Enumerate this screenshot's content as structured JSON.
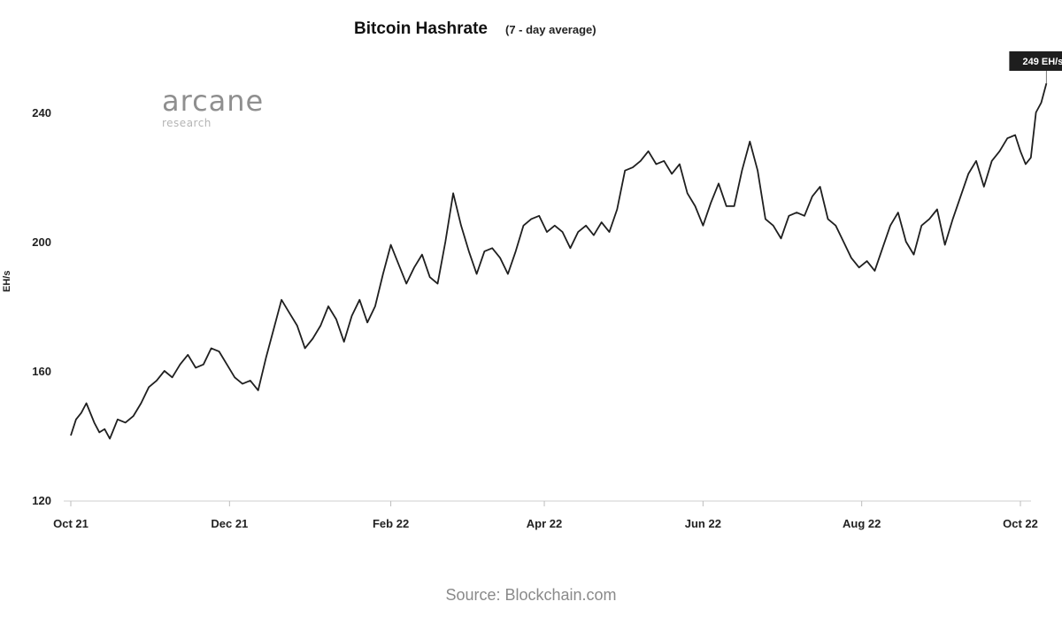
{
  "chart_data": {
    "type": "line",
    "title": "Bitcoin Hashrate",
    "subtitle": "(7 - day average)",
    "xlabel": "",
    "ylabel": "EH/s",
    "ylim": [
      120,
      250
    ],
    "yticks": [
      120,
      160,
      200,
      240
    ],
    "xlim": [
      "2021-10-01",
      "2022-10-06"
    ],
    "xticks": [
      {
        "date": "2021-10-01",
        "label": "Oct 21"
      },
      {
        "date": "2021-12-01",
        "label": "Dec 21"
      },
      {
        "date": "2022-02-01",
        "label": "Feb 22"
      },
      {
        "date": "2022-04-01",
        "label": "Apr 22"
      },
      {
        "date": "2022-06-01",
        "label": "Jun 22"
      },
      {
        "date": "2022-08-01",
        "label": "Aug 22"
      },
      {
        "date": "2022-10-01",
        "label": "Oct 22"
      }
    ],
    "grid": false,
    "series": [
      {
        "color": "#1f1f1f",
        "points": [
          [
            "2021-10-01",
            140
          ],
          [
            "2021-10-03",
            145
          ],
          [
            "2021-10-05",
            147
          ],
          [
            "2021-10-07",
            150
          ],
          [
            "2021-10-10",
            144
          ],
          [
            "2021-10-12",
            141
          ],
          [
            "2021-10-14",
            142
          ],
          [
            "2021-10-16",
            139
          ],
          [
            "2021-10-19",
            145
          ],
          [
            "2021-10-22",
            144
          ],
          [
            "2021-10-25",
            146
          ],
          [
            "2021-10-28",
            150
          ],
          [
            "2021-10-31",
            155
          ],
          [
            "2021-11-03",
            157
          ],
          [
            "2021-11-06",
            160
          ],
          [
            "2021-11-09",
            158
          ],
          [
            "2021-11-12",
            162
          ],
          [
            "2021-11-15",
            165
          ],
          [
            "2021-11-18",
            161
          ],
          [
            "2021-11-21",
            162
          ],
          [
            "2021-11-24",
            167
          ],
          [
            "2021-11-27",
            166
          ],
          [
            "2021-11-30",
            162
          ],
          [
            "2021-12-03",
            158
          ],
          [
            "2021-12-06",
            156
          ],
          [
            "2021-12-09",
            157
          ],
          [
            "2021-12-12",
            154
          ],
          [
            "2021-12-15",
            164
          ],
          [
            "2021-12-18",
            173
          ],
          [
            "2021-12-21",
            182
          ],
          [
            "2021-12-24",
            178
          ],
          [
            "2021-12-27",
            174
          ],
          [
            "2021-12-30",
            167
          ],
          [
            "2022-01-02",
            170
          ],
          [
            "2022-01-05",
            174
          ],
          [
            "2022-01-08",
            180
          ],
          [
            "2022-01-11",
            176
          ],
          [
            "2022-01-14",
            169
          ],
          [
            "2022-01-17",
            177
          ],
          [
            "2022-01-20",
            182
          ],
          [
            "2022-01-23",
            175
          ],
          [
            "2022-01-26",
            180
          ],
          [
            "2022-01-29",
            190
          ],
          [
            "2022-02-01",
            199
          ],
          [
            "2022-02-04",
            193
          ],
          [
            "2022-02-07",
            187
          ],
          [
            "2022-02-10",
            192
          ],
          [
            "2022-02-13",
            196
          ],
          [
            "2022-02-16",
            189
          ],
          [
            "2022-02-19",
            187
          ],
          [
            "2022-02-22",
            200
          ],
          [
            "2022-02-25",
            215
          ],
          [
            "2022-02-28",
            205
          ],
          [
            "2022-03-03",
            197
          ],
          [
            "2022-03-06",
            190
          ],
          [
            "2022-03-09",
            197
          ],
          [
            "2022-03-12",
            198
          ],
          [
            "2022-03-15",
            195
          ],
          [
            "2022-03-18",
            190
          ],
          [
            "2022-03-21",
            197
          ],
          [
            "2022-03-24",
            205
          ],
          [
            "2022-03-27",
            207
          ],
          [
            "2022-03-30",
            208
          ],
          [
            "2022-04-02",
            203
          ],
          [
            "2022-04-05",
            205
          ],
          [
            "2022-04-08",
            203
          ],
          [
            "2022-04-11",
            198
          ],
          [
            "2022-04-14",
            203
          ],
          [
            "2022-04-17",
            205
          ],
          [
            "2022-04-20",
            202
          ],
          [
            "2022-04-23",
            206
          ],
          [
            "2022-04-26",
            203
          ],
          [
            "2022-04-29",
            210
          ],
          [
            "2022-05-02",
            222
          ],
          [
            "2022-05-05",
            223
          ],
          [
            "2022-05-08",
            225
          ],
          [
            "2022-05-11",
            228
          ],
          [
            "2022-05-14",
            224
          ],
          [
            "2022-05-17",
            225
          ],
          [
            "2022-05-20",
            221
          ],
          [
            "2022-05-23",
            224
          ],
          [
            "2022-05-26",
            215
          ],
          [
            "2022-05-29",
            211
          ],
          [
            "2022-06-01",
            205
          ],
          [
            "2022-06-04",
            212
          ],
          [
            "2022-06-07",
            218
          ],
          [
            "2022-06-10",
            211
          ],
          [
            "2022-06-13",
            211
          ],
          [
            "2022-06-16",
            222
          ],
          [
            "2022-06-19",
            231
          ],
          [
            "2022-06-22",
            222
          ],
          [
            "2022-06-25",
            207
          ],
          [
            "2022-06-28",
            205
          ],
          [
            "2022-07-01",
            201
          ],
          [
            "2022-07-04",
            208
          ],
          [
            "2022-07-07",
            209
          ],
          [
            "2022-07-10",
            208
          ],
          [
            "2022-07-13",
            214
          ],
          [
            "2022-07-16",
            217
          ],
          [
            "2022-07-19",
            207
          ],
          [
            "2022-07-22",
            205
          ],
          [
            "2022-07-25",
            200
          ],
          [
            "2022-07-28",
            195
          ],
          [
            "2022-07-31",
            192
          ],
          [
            "2022-08-03",
            194
          ],
          [
            "2022-08-06",
            191
          ],
          [
            "2022-08-09",
            198
          ],
          [
            "2022-08-12",
            205
          ],
          [
            "2022-08-15",
            209
          ],
          [
            "2022-08-18",
            200
          ],
          [
            "2022-08-21",
            196
          ],
          [
            "2022-08-24",
            205
          ],
          [
            "2022-08-27",
            207
          ],
          [
            "2022-08-30",
            210
          ],
          [
            "2022-09-02",
            199
          ],
          [
            "2022-09-05",
            207
          ],
          [
            "2022-09-08",
            214
          ],
          [
            "2022-09-11",
            221
          ],
          [
            "2022-09-14",
            225
          ],
          [
            "2022-09-17",
            217
          ],
          [
            "2022-09-20",
            225
          ],
          [
            "2022-09-23",
            228
          ],
          [
            "2022-09-26",
            232
          ],
          [
            "2022-09-29",
            233
          ],
          [
            "2022-10-01",
            228
          ],
          [
            "2022-10-03",
            224
          ],
          [
            "2022-10-05",
            226
          ],
          [
            "2022-10-07",
            240
          ],
          [
            "2022-10-09",
            243
          ],
          [
            "2022-10-11",
            249
          ]
        ]
      }
    ],
    "annotations": [
      {
        "text": "249 EH/s",
        "x": "2022-10-11",
        "y": 249
      }
    ]
  },
  "logo": {
    "main": "arcane",
    "sub": "research"
  },
  "source": "Source: Blockchain.com"
}
